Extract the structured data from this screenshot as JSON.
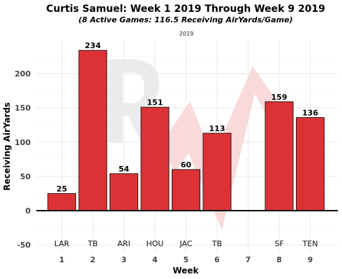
{
  "chart_data": {
    "type": "bar",
    "title": "Curtis Samuel: Week 1 2019 Through Week 9 2019",
    "subtitle": "(8 Active Games: 116.5 Receiving AirYards/Game)",
    "facet_label": "2019",
    "xlabel": "Week",
    "ylabel": "Receiving AirYards",
    "ylim": [
      -60,
      250
    ],
    "yticks": [
      -50,
      0,
      50,
      100,
      150,
      200
    ],
    "categories": [
      "1",
      "2",
      "3",
      "4",
      "5",
      "6",
      "7",
      "8",
      "9"
    ],
    "opponents": [
      "LAR",
      "TB",
      "ARI",
      "HOU",
      "JAC",
      "TB",
      "",
      "SF",
      "TEN"
    ],
    "values": [
      25,
      234,
      54,
      151,
      60,
      113,
      null,
      159,
      136
    ],
    "value_labels": [
      "25",
      "234",
      "54",
      "151",
      "60",
      "113",
      "",
      "159",
      "136"
    ],
    "bar_color": "#dc3236",
    "grid": true,
    "legend": "none"
  }
}
